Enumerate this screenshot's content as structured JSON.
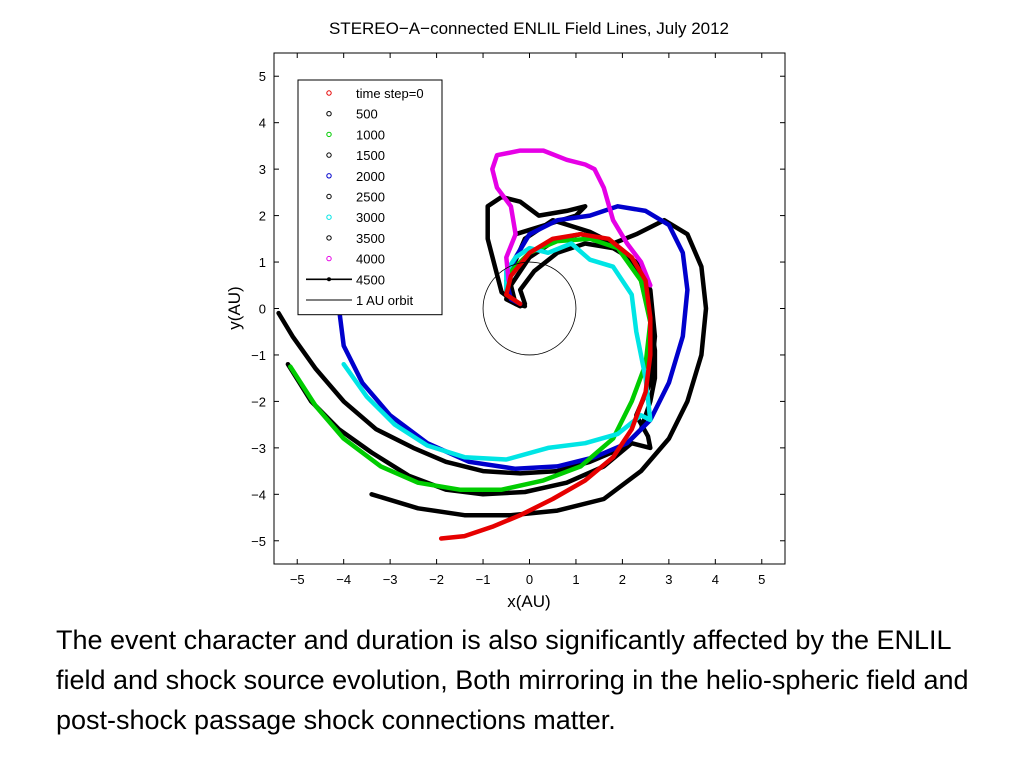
{
  "chart_data": {
    "type": "line",
    "title": "STEREO−A−connected ENLIL Field Lines, July 2012",
    "xlabel": "x(AU)",
    "ylabel": "y(AU)",
    "xlim": [
      -5.5,
      5.5
    ],
    "ylim": [
      -5.5,
      5.5
    ],
    "xticks": [
      "−5",
      "−4",
      "−3",
      "−2",
      "−1",
      "0",
      "1",
      "2",
      "3",
      "4",
      "5"
    ],
    "yticks": [
      "5",
      "4",
      "3",
      "2",
      "1",
      "0",
      "−1",
      "−2",
      "−3",
      "−4",
      "−5"
    ],
    "grid": false,
    "legend_position": "top-left",
    "legend": [
      {
        "label": "time step=0",
        "color": "#e60000",
        "marker": "circle"
      },
      {
        "label": "500",
        "color": "#000000",
        "marker": "circle"
      },
      {
        "label": "1000",
        "color": "#00cc00",
        "marker": "circle"
      },
      {
        "label": "1500",
        "color": "#000000",
        "marker": "circle"
      },
      {
        "label": "2000",
        "color": "#0000cc",
        "marker": "circle"
      },
      {
        "label": "2500",
        "color": "#000000",
        "marker": "circle"
      },
      {
        "label": "3000",
        "color": "#00e5e5",
        "marker": "circle"
      },
      {
        "label": "3500",
        "color": "#000000",
        "marker": "circle"
      },
      {
        "label": "4000",
        "color": "#e600e6",
        "marker": "circle"
      },
      {
        "label": "4500",
        "color": "#000000",
        "marker": "line-dot"
      },
      {
        "label": "1 AU orbit",
        "color": "#000000",
        "marker": "line"
      }
    ],
    "orbit": {
      "center": [
        0,
        0
      ],
      "radius": 1
    },
    "series": [
      {
        "color": "#000000",
        "points": [
          [
            -5.4,
            -0.1
          ],
          [
            -5.1,
            -0.6
          ],
          [
            -4.6,
            -1.3
          ],
          [
            -4.0,
            -2.0
          ],
          [
            -3.3,
            -2.6
          ],
          [
            -2.5,
            -3.0
          ],
          [
            -1.8,
            -3.3
          ],
          [
            -1.0,
            -3.5
          ],
          [
            -0.2,
            -3.55
          ],
          [
            0.6,
            -3.5
          ],
          [
            1.3,
            -3.3
          ],
          [
            2.0,
            -3.0
          ],
          [
            2.4,
            -2.6
          ],
          [
            2.6,
            -2.0
          ],
          [
            2.7,
            -1.5
          ],
          [
            2.7,
            -0.9
          ],
          [
            2.6,
            -0.2
          ],
          [
            2.4,
            0.6
          ],
          [
            2.1,
            1.1
          ],
          [
            1.6,
            1.5
          ],
          [
            1.1,
            1.6
          ],
          [
            0.6,
            1.5
          ],
          [
            0.0,
            1.1
          ],
          [
            -0.4,
            0.5
          ],
          [
            -0.3,
            0.1
          ],
          [
            -0.1,
            0.05
          ]
        ]
      },
      {
        "color": "#000000",
        "points": [
          [
            -3.4,
            -4.0
          ],
          [
            -2.4,
            -4.3
          ],
          [
            -1.4,
            -4.45
          ],
          [
            -0.4,
            -4.45
          ],
          [
            0.6,
            -4.35
          ],
          [
            1.6,
            -4.1
          ],
          [
            2.4,
            -3.5
          ],
          [
            3.0,
            -2.8
          ],
          [
            3.4,
            -2.0
          ],
          [
            3.7,
            -1.0
          ],
          [
            3.8,
            0.0
          ],
          [
            3.7,
            0.9
          ],
          [
            3.4,
            1.6
          ],
          [
            2.9,
            1.9
          ],
          [
            2.3,
            1.6
          ],
          [
            1.8,
            1.4
          ],
          [
            1.3,
            1.65
          ],
          [
            0.5,
            1.9
          ],
          [
            -0.1,
            1.5
          ],
          [
            -0.4,
            0.8
          ],
          [
            -0.5,
            0.2
          ],
          [
            -0.2,
            0.05
          ],
          [
            -0.6,
            0.35
          ],
          [
            -0.9,
            1.5
          ],
          [
            -0.9,
            2.2
          ],
          [
            -0.6,
            2.4
          ],
          [
            -0.2,
            2.3
          ],
          [
            0.2,
            2.0
          ],
          [
            0.8,
            2.1
          ],
          [
            1.2,
            2.2
          ],
          [
            1.0,
            2.0
          ],
          [
            -0.3,
            1.6
          ]
        ]
      },
      {
        "color": "#000000",
        "points": [
          [
            -5.2,
            -1.2
          ],
          [
            -4.7,
            -2.0
          ],
          [
            -4.1,
            -2.6
          ],
          [
            -3.4,
            -3.1
          ],
          [
            -2.6,
            -3.6
          ],
          [
            -1.8,
            -3.9
          ],
          [
            -1.0,
            -4.0
          ],
          [
            -0.1,
            -3.95
          ],
          [
            0.8,
            -3.75
          ],
          [
            1.6,
            -3.4
          ],
          [
            2.2,
            -2.9
          ],
          [
            2.6,
            -3.0
          ],
          [
            2.55,
            -2.75
          ],
          [
            2.3,
            -2.3
          ],
          [
            2.6,
            -1.6
          ],
          [
            2.7,
            -0.6
          ],
          [
            2.6,
            0.4
          ],
          [
            2.3,
            1.0
          ],
          [
            1.8,
            1.3
          ],
          [
            1.2,
            1.4
          ],
          [
            0.6,
            1.2
          ],
          [
            0.1,
            0.8
          ],
          [
            -0.2,
            0.4
          ],
          [
            -0.1,
            0.1
          ]
        ]
      },
      {
        "color": "#0000cc",
        "points": [
          [
            -4.1,
            0.0
          ],
          [
            -4.0,
            -0.8
          ],
          [
            -3.6,
            -1.6
          ],
          [
            -3.0,
            -2.3
          ],
          [
            -2.2,
            -2.9
          ],
          [
            -1.3,
            -3.3
          ],
          [
            -0.3,
            -3.45
          ],
          [
            0.6,
            -3.4
          ],
          [
            1.4,
            -3.2
          ],
          [
            2.1,
            -2.9
          ],
          [
            2.6,
            -2.4
          ],
          [
            3.0,
            -1.6
          ],
          [
            3.3,
            -0.6
          ],
          [
            3.4,
            0.4
          ],
          [
            3.3,
            1.2
          ],
          [
            3.0,
            1.8
          ],
          [
            2.5,
            2.1
          ],
          [
            1.9,
            2.2
          ],
          [
            1.3,
            2.0
          ],
          [
            0.6,
            1.9
          ],
          [
            0.0,
            1.6
          ],
          [
            -0.3,
            1.1
          ],
          [
            -0.5,
            0.6
          ],
          [
            -0.4,
            0.2
          ],
          [
            -0.2,
            0.1
          ]
        ]
      },
      {
        "color": "#00cc00",
        "points": [
          [
            -5.15,
            -1.25
          ],
          [
            -4.6,
            -2.1
          ],
          [
            -4.0,
            -2.8
          ],
          [
            -3.2,
            -3.4
          ],
          [
            -2.4,
            -3.75
          ],
          [
            -1.5,
            -3.9
          ],
          [
            -0.6,
            -3.9
          ],
          [
            0.3,
            -3.7
          ],
          [
            1.1,
            -3.4
          ],
          [
            1.8,
            -2.8
          ],
          [
            2.2,
            -2.0
          ],
          [
            2.5,
            -1.2
          ],
          [
            2.6,
            -0.3
          ],
          [
            2.4,
            0.6
          ],
          [
            1.9,
            1.3
          ],
          [
            1.3,
            1.5
          ],
          [
            0.6,
            1.45
          ],
          [
            0.0,
            1.2
          ],
          [
            -0.4,
            0.8
          ],
          [
            -0.5,
            0.4
          ]
        ]
      },
      {
        "color": "#00e5e5",
        "points": [
          [
            -4.0,
            -1.2
          ],
          [
            -3.5,
            -1.9
          ],
          [
            -2.9,
            -2.5
          ],
          [
            -2.2,
            -2.95
          ],
          [
            -1.4,
            -3.2
          ],
          [
            -0.5,
            -3.25
          ],
          [
            0.4,
            -3.0
          ],
          [
            1.2,
            -2.9
          ],
          [
            1.9,
            -2.7
          ],
          [
            2.4,
            -2.3
          ],
          [
            2.6,
            -2.4
          ],
          [
            2.5,
            -1.5
          ],
          [
            2.3,
            -0.5
          ],
          [
            2.2,
            0.3
          ],
          [
            1.8,
            0.9
          ],
          [
            1.3,
            1.05
          ],
          [
            0.9,
            1.4
          ],
          [
            0.4,
            1.2
          ],
          [
            0.0,
            1.3
          ],
          [
            -0.3,
            1.1
          ],
          [
            -0.5,
            0.8
          ],
          [
            -0.5,
            0.4
          ]
        ]
      },
      {
        "color": "#e600e6",
        "points": [
          [
            -0.45,
            0.6
          ],
          [
            -0.5,
            1.1
          ],
          [
            -0.3,
            1.6
          ],
          [
            -0.4,
            2.2
          ],
          [
            -0.7,
            2.6
          ],
          [
            -0.8,
            3.0
          ],
          [
            -0.7,
            3.3
          ],
          [
            -0.2,
            3.4
          ],
          [
            0.3,
            3.4
          ],
          [
            0.8,
            3.2
          ],
          [
            1.2,
            3.1
          ],
          [
            1.4,
            3.0
          ],
          [
            1.6,
            2.6
          ],
          [
            1.8,
            1.9
          ],
          [
            2.1,
            1.4
          ],
          [
            2.4,
            1.0
          ],
          [
            2.6,
            0.5
          ]
        ]
      },
      {
        "color": "#e60000",
        "points": [
          [
            -1.9,
            -4.95
          ],
          [
            -1.4,
            -4.9
          ],
          [
            -0.8,
            -4.7
          ],
          [
            -0.2,
            -4.45
          ],
          [
            0.5,
            -4.1
          ],
          [
            1.2,
            -3.7
          ],
          [
            1.8,
            -3.2
          ],
          [
            2.2,
            -2.6
          ],
          [
            2.5,
            -1.8
          ],
          [
            2.6,
            -1.0
          ],
          [
            2.6,
            -0.2
          ],
          [
            2.5,
            0.6
          ],
          [
            2.2,
            1.1
          ],
          [
            1.7,
            1.5
          ],
          [
            1.1,
            1.6
          ],
          [
            0.5,
            1.5
          ],
          [
            0.0,
            1.2
          ],
          [
            -0.4,
            0.7
          ],
          [
            -0.5,
            0.3
          ],
          [
            -0.2,
            0.1
          ]
        ]
      }
    ]
  },
  "caption": "The event character and duration is also significantly affected by the ENLIL field and shock source evolution, Both mirroring in the helio-spheric field and post-shock passage shock connections matter."
}
